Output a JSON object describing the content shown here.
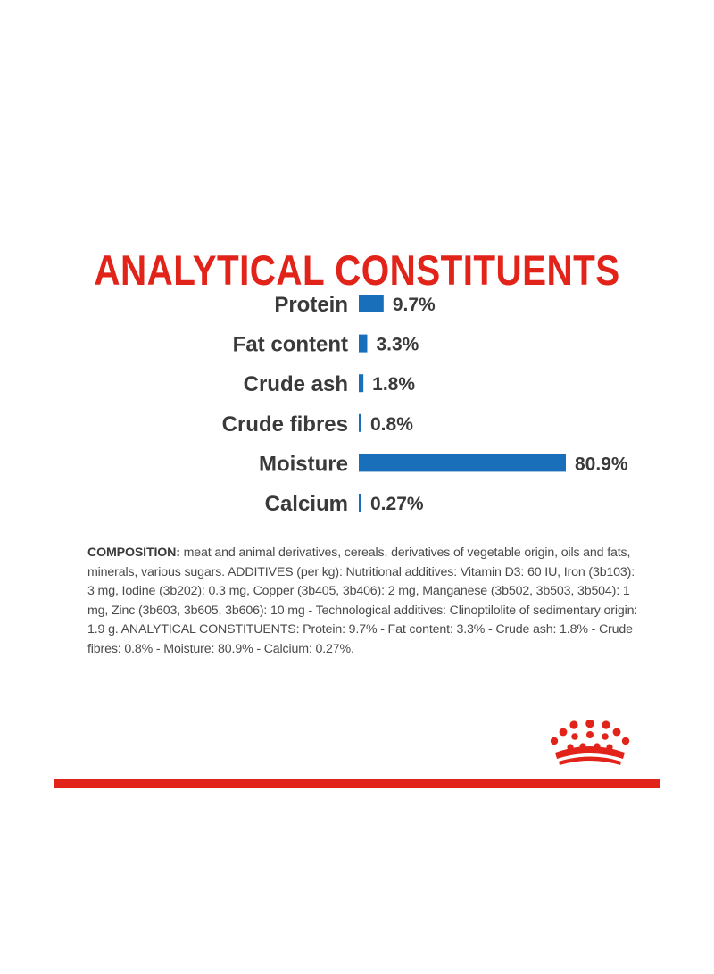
{
  "title": "ANALYTICAL CONSTITUENTS",
  "chart_data": {
    "type": "bar",
    "orientation": "horizontal",
    "title": "ANALYTICAL CONSTITUENTS",
    "categories": [
      "Protein",
      "Fat content",
      "Crude ash",
      "Crude fibres",
      "Moisture",
      "Calcium"
    ],
    "values": [
      9.7,
      3.3,
      1.8,
      0.8,
      80.9,
      0.27
    ],
    "value_labels": [
      "9.7%",
      "3.3%",
      "1.8%",
      "0.8%",
      "80.9%",
      "0.27%"
    ],
    "unit": "%",
    "xlabel": "",
    "ylabel": "",
    "xlim": [
      0,
      80.9
    ],
    "grid": false,
    "legend": "none",
    "bar_color": "#1a6fba",
    "label_color": "#3a3a3a"
  },
  "composition": {
    "heading": "COMPOSITION:",
    "text": " meat and animal derivatives, cereals, derivatives of vegetable origin, oils and fats, minerals, various sugars. ADDITIVES (per kg): Nutritional additives: Vitamin D3: 60 IU, Iron (3b103): 3 mg, Iodine (3b202): 0.3 mg, Copper (3b405, 3b406): 2 mg, Manganese (3b502, 3b503, 3b504): 1 mg, Zinc (3b603, 3b605, 3b606): 10 mg - Technological additives: Clinoptilolite of sedimentary origin: 1.9 g. ANALYTICAL CONSTITUENTS: Protein: 9.7% - Fat content: 3.3% - Crude ash: 1.8% - Crude fibres: 0.8% - Moisture: 80.9% - Calcium: 0.27%."
  },
  "colors": {
    "brand_red": "#e2231a",
    "bar_blue": "#1a6fba",
    "text_dark": "#3a3a3a"
  },
  "logo": {
    "icon": "crown-logo-icon"
  }
}
